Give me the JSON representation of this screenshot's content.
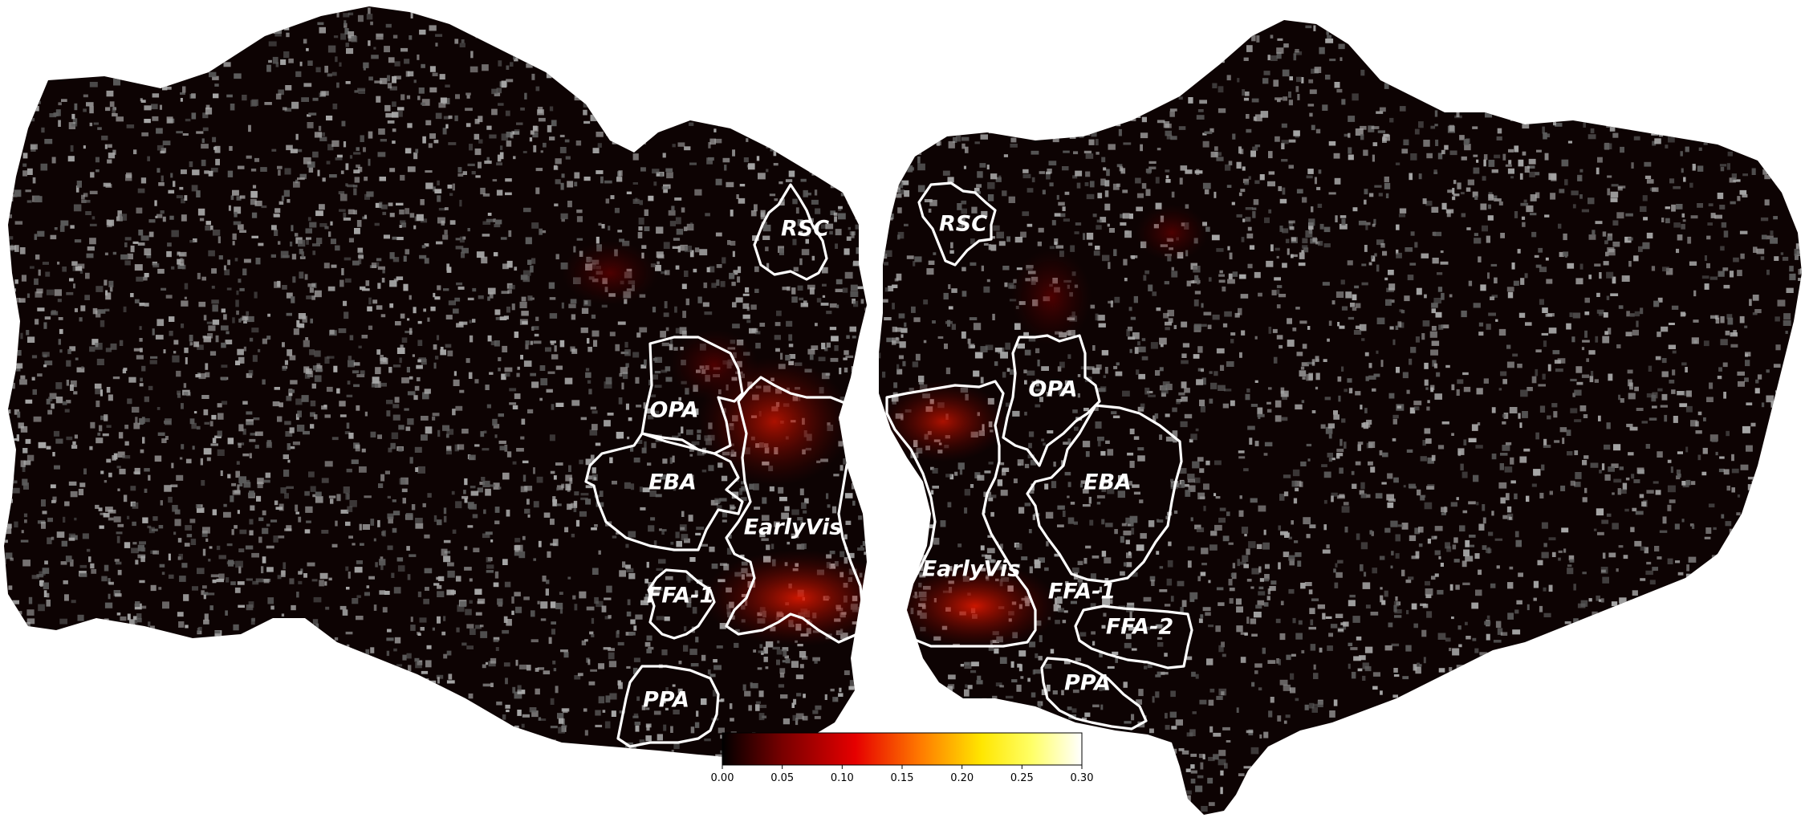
{
  "colorbar": {
    "colormap": "hot",
    "colors": [
      "#000000",
      "#7a0000",
      "#e60000",
      "#ff7a00",
      "#ffe600",
      "#ffff66",
      "#ffffff"
    ],
    "ticks": [
      "0.00",
      "0.05",
      "0.10",
      "0.15",
      "0.20",
      "0.25",
      "0.30"
    ],
    "range": [
      0,
      0.3
    ]
  },
  "background": {
    "cortex_color": "#0d0303",
    "curvature_light": "#a8a8a8",
    "curvature_dark": "#5c5c5c"
  },
  "rois": {
    "left": {
      "rsc": "RSC",
      "opa": "OPA",
      "eba": "EBA",
      "earlyvis": "EarlyVis",
      "ffa1": "FFA-1",
      "ppa": "PPA"
    },
    "right": {
      "rsc": "RSC",
      "opa": "OPA",
      "eba": "EBA",
      "earlyvis": "EarlyVis",
      "ffa1": "FFA-1",
      "ffa2": "FFA-2",
      "ppa": "PPA"
    }
  }
}
